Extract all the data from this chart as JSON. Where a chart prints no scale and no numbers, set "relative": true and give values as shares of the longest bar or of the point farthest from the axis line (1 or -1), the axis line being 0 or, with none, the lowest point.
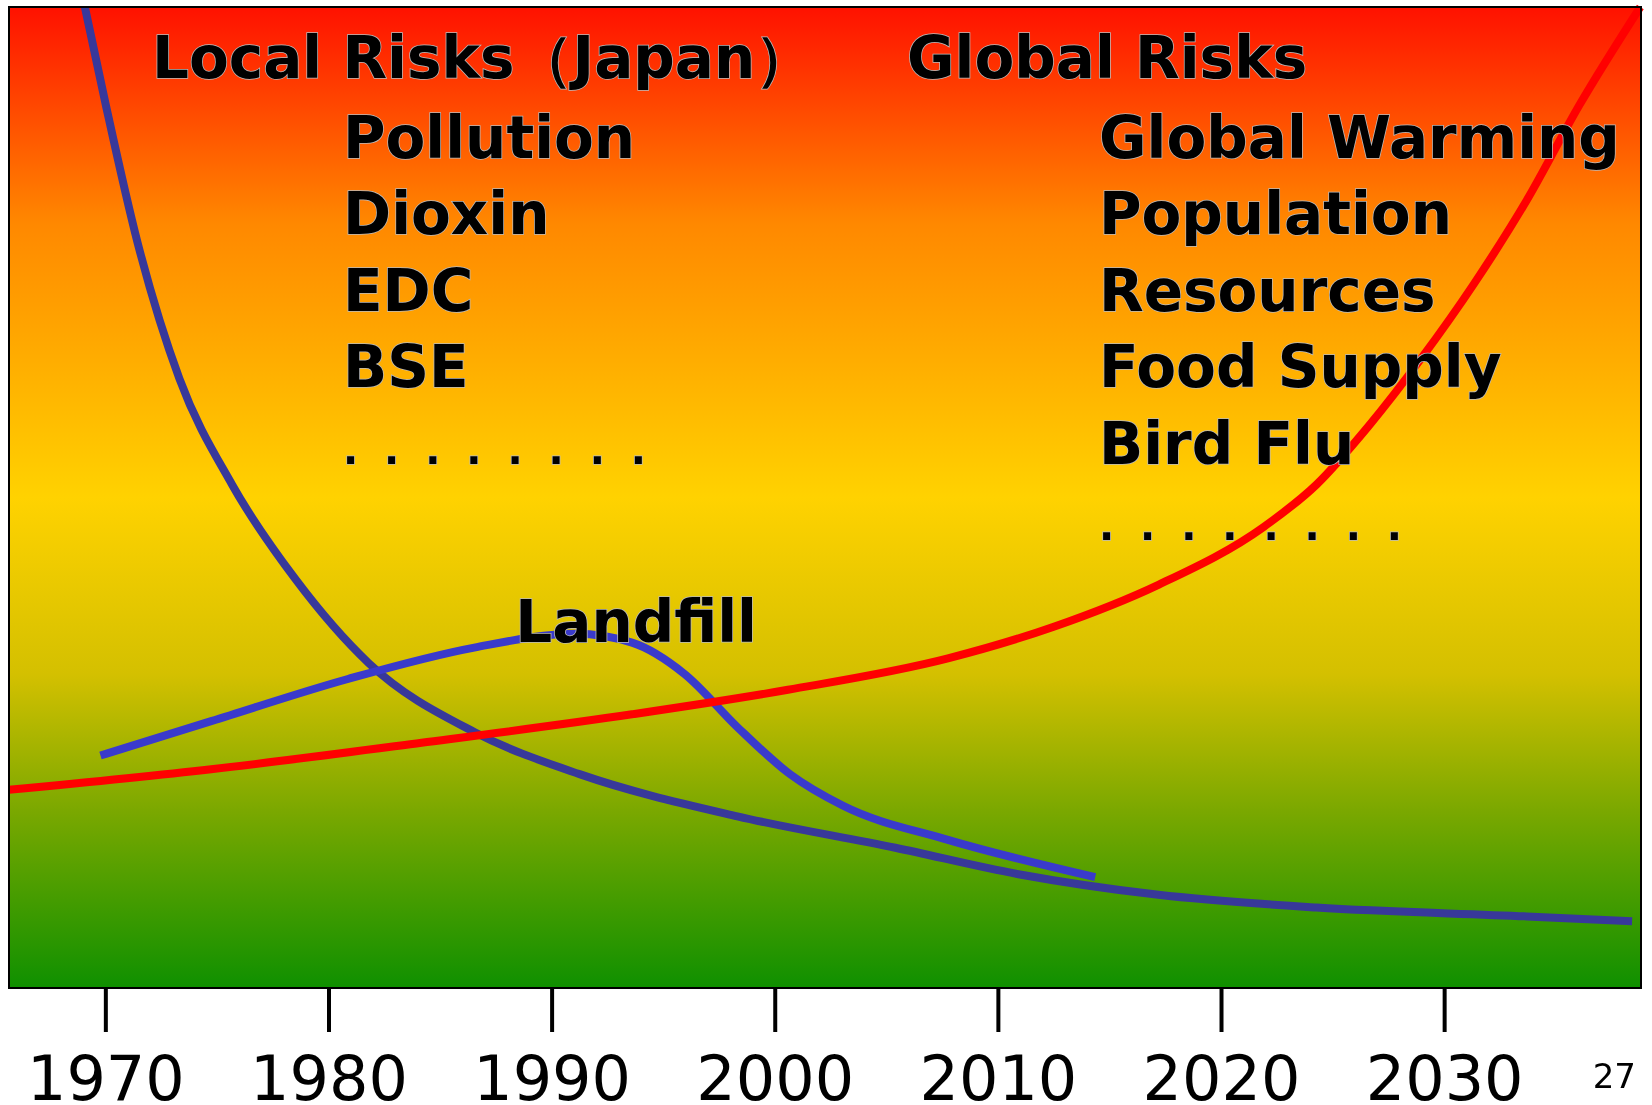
{
  "chart_data": {
    "type": "line",
    "relative": true,
    "xlim": [
      1965.66,
      2038.8
    ],
    "xticks": [
      1970,
      1980,
      1990,
      2000,
      2010,
      2020,
      2030
    ],
    "grid": false,
    "legend": false,
    "marker": "none",
    "line_style": "solid",
    "annotations": [
      "Local Risks（Japan）",
      "Pollution",
      "Dioxin",
      "EDC",
      "BSE",
      ". . . . . . . .",
      "Global Risks",
      "Global Warming",
      "Population",
      "Resources",
      "Food Supply",
      "Bird Flu",
      ". . . . . . . .",
      "27"
    ],
    "series": [
      {
        "color": "#38389a",
        "x": [
          1969.06,
          1970,
          1971.42,
          1973.3,
          1975.66,
          1978.49,
          1981.79,
          1986.51,
          1991.23,
          1998.3,
          2005.38,
          2010.9,
          2017.17,
          2024.25,
          2033.68,
          2038.4
        ],
        "values": [
          1,
          0.9,
          0.76,
          0.621,
          0.513,
          0.417,
          0.331,
          0.261,
          0.218,
          0.175,
          0.143,
          0.116,
          0.095,
          0.082,
          0.073,
          0.068
        ]
      },
      {
        "name": "Landfill",
        "color": "#3a3acc",
        "x": [
          1969.76,
          1974.72,
          1980.85,
          1986.51,
          1991.04,
          1993.58,
          1995.94,
          1998.3,
          2000.66,
          2003.02,
          2007.74,
          2014.34
        ],
        "values": [
          0.237,
          0.272,
          0.315,
          0.347,
          0.361,
          0.352,
          0.32,
          0.266,
          0.218,
          0.186,
          0.151,
          0.113
        ]
      },
      {
        "color": "#ff0000",
        "x": [
          1965.66,
          1974.72,
          1984.15,
          1993.58,
          2000.57,
          2007.74,
          2012.45,
          2017.17,
          2021.89,
          2024.25,
          2026.6,
          2028.96,
          2031.32,
          2033.68,
          2036.04,
          2038.77
        ],
        "values": [
          0.202,
          0.223,
          0.25,
          0.279,
          0.304,
          0.336,
          0.368,
          0.411,
          0.47,
          0.513,
          0.573,
          0.642,
          0.718,
          0.803,
          0.9,
          1
        ]
      }
    ]
  }
}
